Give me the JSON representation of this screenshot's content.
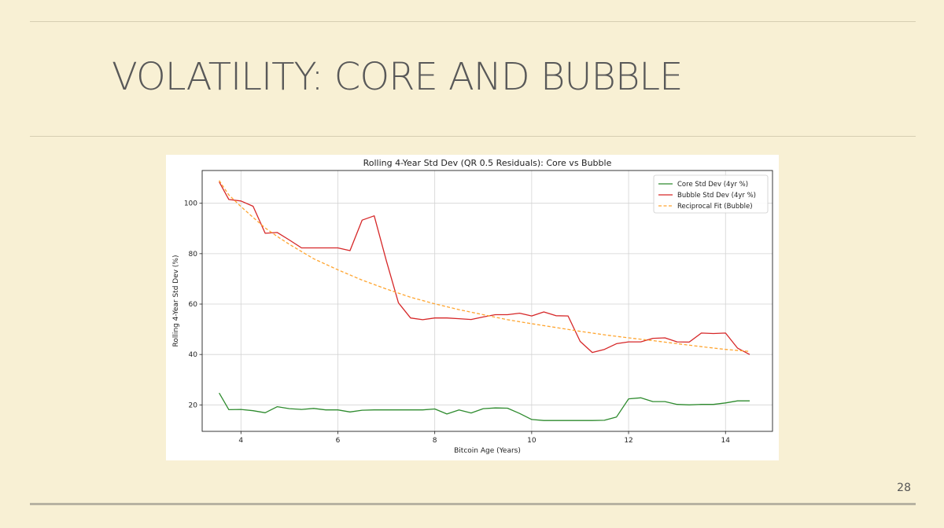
{
  "slide": {
    "title": "VOLATILITY: CORE AND BUBBLE",
    "page_number": "28"
  },
  "chart_data": {
    "type": "line",
    "title": "Rolling 4-Year Std Dev (QR 0.5 Residuals): Core vs Bubble",
    "xlabel": "Bitcoin Age (Years)",
    "ylabel": "Rolling 4-Year Std Dev (%)",
    "xlim": [
      3.2,
      14.97
    ],
    "ylim": [
      9.5,
      113
    ],
    "xticks": [
      4,
      6,
      8,
      10,
      12,
      14
    ],
    "yticks": [
      20,
      40,
      60,
      80,
      100
    ],
    "grid": true,
    "legend_position": "top-right",
    "series": [
      {
        "name": "Core Std Dev (4yr %)",
        "color": "#2e8b2e",
        "style": "solid",
        "x": [
          3.55,
          3.75,
          4.0,
          4.25,
          4.5,
          4.75,
          5.0,
          5.25,
          5.5,
          5.75,
          6.0,
          6.25,
          6.5,
          6.75,
          7.0,
          7.25,
          7.5,
          7.75,
          8.0,
          8.25,
          8.5,
          8.75,
          9.0,
          9.25,
          9.5,
          9.75,
          10.0,
          10.25,
          10.5,
          10.75,
          11.0,
          11.25,
          11.5,
          11.75,
          12.0,
          12.25,
          12.5,
          12.75,
          13.0,
          13.25,
          13.5,
          13.75,
          14.0,
          14.25,
          14.5
        ],
        "values": [
          24.7,
          18.1,
          18.2,
          17.7,
          16.9,
          19.3,
          18.5,
          18.2,
          18.6,
          18.0,
          18.0,
          17.2,
          17.9,
          18.0,
          18.0,
          18.0,
          18.0,
          18.0,
          18.4,
          16.4,
          18.0,
          16.8,
          18.5,
          18.8,
          18.7,
          16.6,
          14.2,
          13.8,
          13.8,
          13.8,
          13.8,
          13.8,
          13.9,
          15.2,
          22.4,
          22.8,
          21.3,
          21.3,
          20.2,
          20.0,
          20.2,
          20.2,
          20.8,
          21.6,
          21.6
        ]
      },
      {
        "name": "Bubble Std Dev (4yr %)",
        "color": "#d62728",
        "style": "solid",
        "x": [
          3.55,
          3.75,
          4.0,
          4.25,
          4.5,
          4.75,
          5.0,
          5.25,
          5.5,
          5.75,
          6.0,
          6.25,
          6.5,
          6.75,
          7.0,
          7.25,
          7.5,
          7.75,
          8.0,
          8.25,
          8.5,
          8.75,
          9.0,
          9.25,
          9.5,
          9.75,
          10.0,
          10.25,
          10.5,
          10.75,
          11.0,
          11.25,
          11.5,
          11.75,
          12.0,
          12.25,
          12.5,
          12.75,
          13.0,
          13.25,
          13.5,
          13.75,
          14.0,
          14.25,
          14.5
        ],
        "values": [
          108.5,
          101.5,
          100.9,
          98.8,
          88.1,
          88.4,
          85.4,
          82.3,
          82.3,
          82.3,
          82.3,
          81.2,
          93.3,
          95.0,
          77.2,
          60.5,
          54.5,
          53.8,
          54.5,
          54.5,
          54.2,
          53.9,
          54.9,
          55.8,
          55.8,
          56.4,
          55.3,
          56.9,
          55.4,
          55.3,
          45.2,
          40.8,
          42.0,
          44.3,
          45.0,
          45.0,
          46.4,
          46.6,
          45.0,
          44.9,
          48.5,
          48.3,
          48.5,
          42.5,
          40.0
        ]
      },
      {
        "name": "Reciprocal Fit (Bubble)",
        "color": "#ffa530",
        "style": "dashed",
        "x": [
          3.55,
          3.75,
          4.0,
          4.25,
          4.5,
          4.75,
          5.0,
          5.5,
          6.0,
          6.5,
          7.0,
          7.5,
          8.0,
          8.5,
          9.0,
          9.5,
          10.0,
          10.5,
          11.0,
          11.5,
          12.0,
          12.5,
          13.0,
          13.5,
          14.0,
          14.5
        ],
        "values": [
          109.0,
          103.3,
          98.7,
          94.4,
          90.2,
          86.8,
          83.7,
          78.0,
          73.6,
          69.5,
          66.0,
          62.7,
          60.1,
          57.8,
          55.8,
          53.8,
          52.2,
          50.7,
          49.2,
          47.8,
          46.6,
          45.5,
          44.3,
          43.1,
          42.0,
          41.2
        ]
      }
    ]
  }
}
